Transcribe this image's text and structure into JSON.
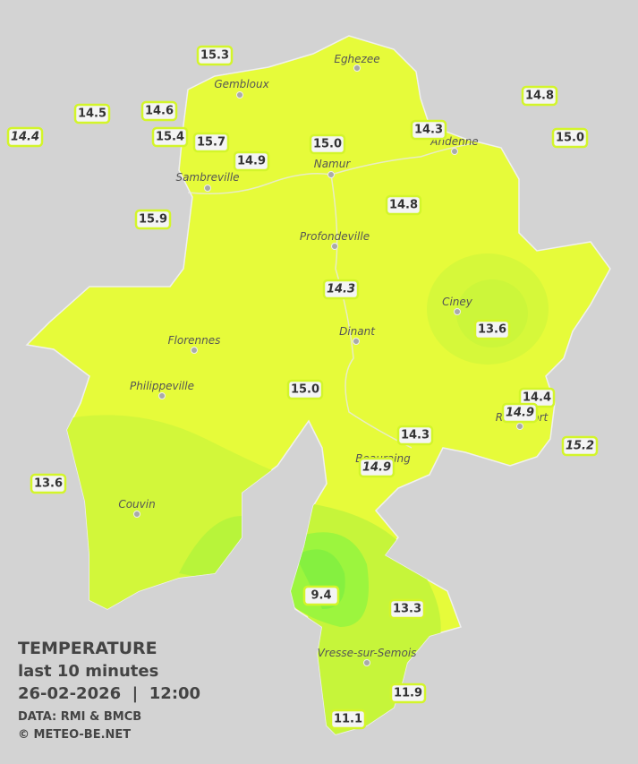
{
  "cities": [
    "Eghezee",
    "Gembloux",
    "Andenne",
    "Namur",
    "Sambreville",
    "Profondeville",
    "Ciney",
    "Dinant",
    "Florennes",
    "Philippeville",
    "Rochefort",
    "Beauraing",
    "Couvin",
    "Vresse-sur-Semois"
  ],
  "stations": [
    "15.3",
    "14.5",
    "14.6",
    "14.4",
    "15.4",
    "15.7",
    "14.9",
    "15.0",
    "14.3",
    "14.8",
    "15.0",
    "15.9",
    "14.8",
    "14.3",
    "13.6",
    "15.0",
    "14.4",
    "14.9",
    "14.3",
    "15.2",
    "14.9",
    "13.6",
    "9.4",
    "13.3",
    "11.9",
    "11.1"
  ],
  "legend": {
    "title": "TEMPERATURE",
    "period": "last 10 minutes",
    "datetime": "26-02-2026  |  12:00",
    "source": "DATA: RMI & BMCB",
    "copyright": "© METEO-BE.NET"
  }
}
